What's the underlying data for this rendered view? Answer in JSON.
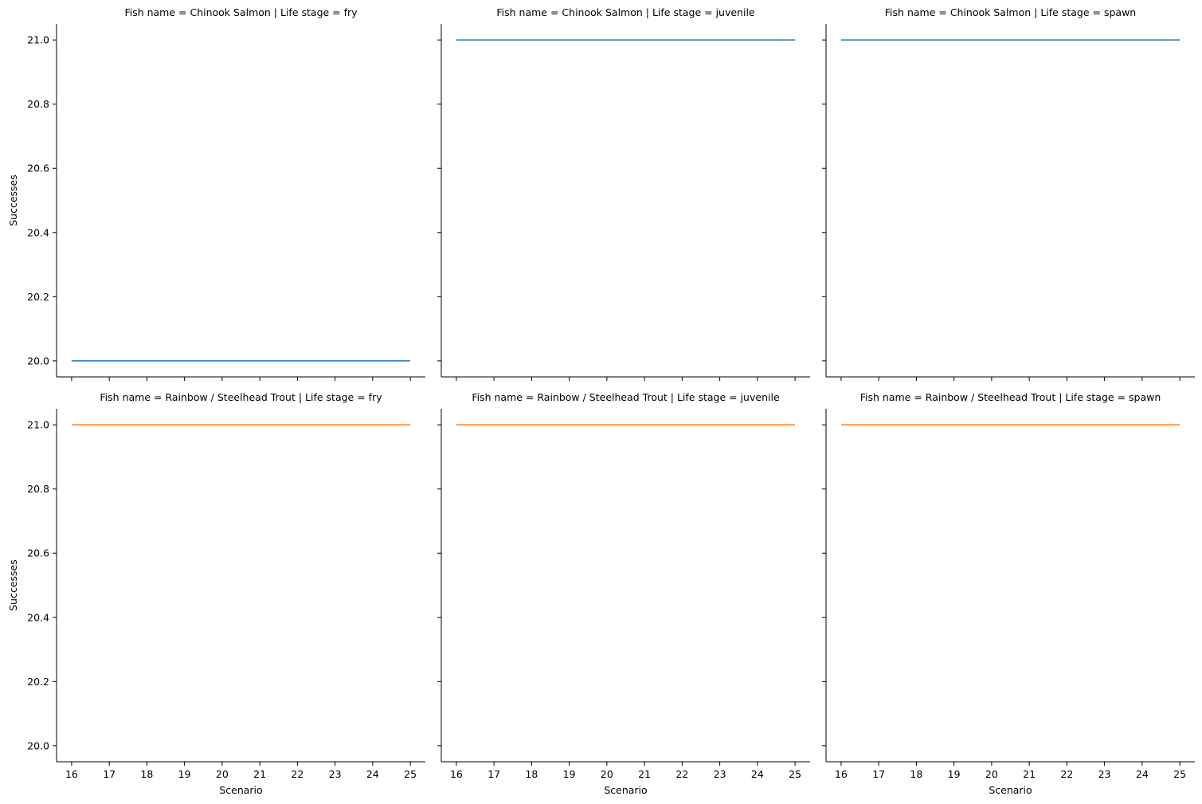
{
  "chart_data": {
    "type": "line",
    "layout": "facet-grid",
    "xlabel": "Scenario",
    "ylabel": "Successes",
    "xlim": [
      15.6,
      25.4
    ],
    "ylim": [
      19.95,
      21.05
    ],
    "xticks": [
      16,
      17,
      18,
      19,
      20,
      21,
      22,
      23,
      24,
      25
    ],
    "yticks": [
      20.0,
      20.2,
      20.4,
      20.6,
      20.8,
      21.0
    ],
    "ytick_labels": [
      "20.0",
      "20.2",
      "20.4",
      "20.6",
      "20.8",
      "21.0"
    ],
    "colors": {
      "Chinook Salmon": "#1f77b4",
      "Rainbow / Steelhead Trout": "#ff7f0e"
    },
    "panels": [
      {
        "title": "Fish name = Chinook Salmon | Life stage = fry",
        "fish": "Chinook Salmon",
        "life_stage": "fry",
        "row": 0,
        "col": 0,
        "x": [
          16,
          17,
          18,
          19,
          20,
          21,
          22,
          23,
          24,
          25
        ],
        "y": [
          20,
          20,
          20,
          20,
          20,
          20,
          20,
          20,
          20,
          20
        ]
      },
      {
        "title": "Fish name = Chinook Salmon | Life stage = juvenile",
        "fish": "Chinook Salmon",
        "life_stage": "juvenile",
        "row": 0,
        "col": 1,
        "x": [
          16,
          17,
          18,
          19,
          20,
          21,
          22,
          23,
          24,
          25
        ],
        "y": [
          21,
          21,
          21,
          21,
          21,
          21,
          21,
          21,
          21,
          21
        ]
      },
      {
        "title": "Fish name = Chinook Salmon | Life stage = spawn",
        "fish": "Chinook Salmon",
        "life_stage": "spawn",
        "row": 0,
        "col": 2,
        "x": [
          16,
          17,
          18,
          19,
          20,
          21,
          22,
          23,
          24,
          25
        ],
        "y": [
          21,
          21,
          21,
          21,
          21,
          21,
          21,
          21,
          21,
          21
        ]
      },
      {
        "title": "Fish name = Rainbow / Steelhead Trout | Life stage = fry",
        "fish": "Rainbow / Steelhead Trout",
        "life_stage": "fry",
        "row": 1,
        "col": 0,
        "x": [
          16,
          17,
          18,
          19,
          20,
          21,
          22,
          23,
          24,
          25
        ],
        "y": [
          21,
          21,
          21,
          21,
          21,
          21,
          21,
          21,
          21,
          21
        ]
      },
      {
        "title": "Fish name = Rainbow / Steelhead Trout | Life stage = juvenile",
        "fish": "Rainbow / Steelhead Trout",
        "life_stage": "juvenile",
        "row": 1,
        "col": 1,
        "x": [
          16,
          17,
          18,
          19,
          20,
          21,
          22,
          23,
          24,
          25
        ],
        "y": [
          21,
          21,
          21,
          21,
          21,
          21,
          21,
          21,
          21,
          21
        ]
      },
      {
        "title": "Fish name = Rainbow / Steelhead Trout | Life stage = spawn",
        "fish": "Rainbow / Steelhead Trout",
        "life_stage": "spawn",
        "row": 1,
        "col": 2,
        "x": [
          16,
          17,
          18,
          19,
          20,
          21,
          22,
          23,
          24,
          25
        ],
        "y": [
          21,
          21,
          21,
          21,
          21,
          21,
          21,
          21,
          21,
          21
        ]
      }
    ]
  }
}
